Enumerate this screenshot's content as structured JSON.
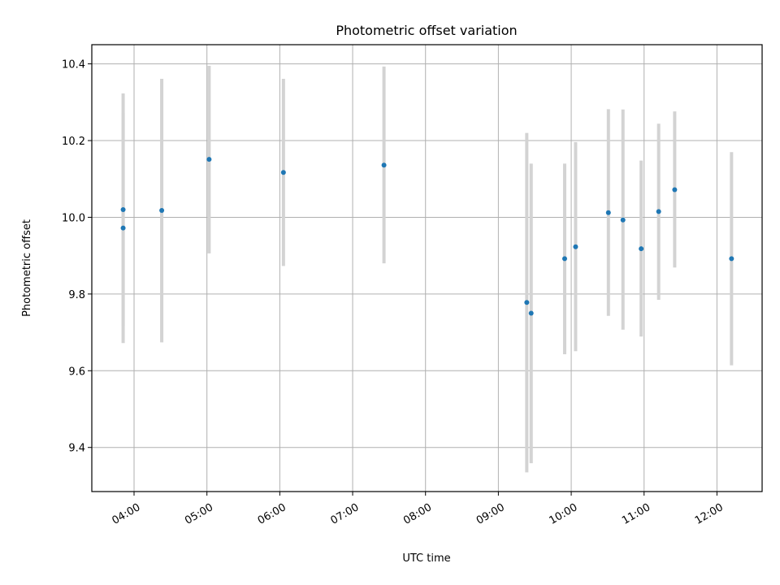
{
  "chart_data": {
    "type": "scatter",
    "title": "Photometric offset variation",
    "xlabel": "UTC time",
    "ylabel": "Photometric offset",
    "x_unit": "hour (UTC, decimal)",
    "xlim": [
      3.42,
      12.62
    ],
    "ylim": [
      9.285,
      10.45
    ],
    "x_ticks": [
      {
        "value": 4,
        "label": "04:00"
      },
      {
        "value": 5,
        "label": "05:00"
      },
      {
        "value": 6,
        "label": "06:00"
      },
      {
        "value": 7,
        "label": "07:00"
      },
      {
        "value": 8,
        "label": "08:00"
      },
      {
        "value": 9,
        "label": "09:00"
      },
      {
        "value": 10,
        "label": "10:00"
      },
      {
        "value": 11,
        "label": "11:00"
      },
      {
        "value": 12,
        "label": "12:00"
      }
    ],
    "y_ticks": [
      {
        "value": 9.4,
        "label": "9.4"
      },
      {
        "value": 9.6,
        "label": "9.6"
      },
      {
        "value": 9.8,
        "label": "9.8"
      },
      {
        "value": 10.0,
        "label": "10.0"
      },
      {
        "value": 10.2,
        "label": "10.2"
      },
      {
        "value": 10.4,
        "label": "10.4"
      }
    ],
    "grid": true,
    "point_color": "#1f77b4",
    "errorbar_color": "#d3d3d3",
    "points": [
      {
        "x": 3.85,
        "y": 10.02,
        "ylow": 9.717,
        "yhigh": 10.323
      },
      {
        "x": 3.85,
        "y": 9.972,
        "ylow": 9.672,
        "yhigh": 10.272
      },
      {
        "x": 4.38,
        "y": 10.018,
        "ylow": 9.674,
        "yhigh": 10.361
      },
      {
        "x": 5.03,
        "y": 10.151,
        "ylow": 9.906,
        "yhigh": 10.395
      },
      {
        "x": 6.05,
        "y": 10.117,
        "ylow": 9.873,
        "yhigh": 10.361
      },
      {
        "x": 7.43,
        "y": 10.136,
        "ylow": 9.88,
        "yhigh": 10.393
      },
      {
        "x": 9.39,
        "y": 9.778,
        "ylow": 9.335,
        "yhigh": 10.22
      },
      {
        "x": 9.45,
        "y": 9.75,
        "ylow": 9.359,
        "yhigh": 10.14
      },
      {
        "x": 9.91,
        "y": 9.892,
        "ylow": 9.643,
        "yhigh": 10.14
      },
      {
        "x": 10.06,
        "y": 9.923,
        "ylow": 9.651,
        "yhigh": 10.196
      },
      {
        "x": 10.51,
        "y": 10.012,
        "ylow": 9.743,
        "yhigh": 10.282
      },
      {
        "x": 10.71,
        "y": 9.993,
        "ylow": 9.707,
        "yhigh": 10.281
      },
      {
        "x": 10.96,
        "y": 9.918,
        "ylow": 9.689,
        "yhigh": 10.148
      },
      {
        "x": 11.2,
        "y": 10.015,
        "ylow": 9.785,
        "yhigh": 10.244
      },
      {
        "x": 11.42,
        "y": 10.072,
        "ylow": 9.869,
        "yhigh": 10.276
      },
      {
        "x": 12.2,
        "y": 9.892,
        "ylow": 9.614,
        "yhigh": 10.17
      }
    ]
  }
}
